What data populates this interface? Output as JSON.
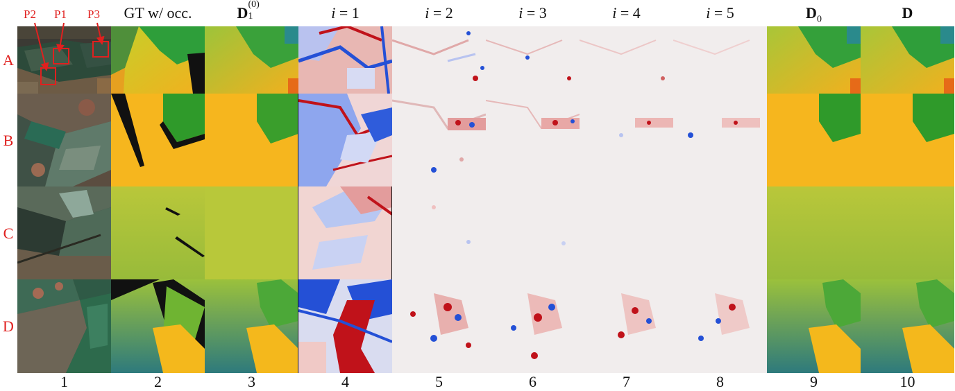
{
  "headers": {
    "c1": "",
    "c2": "GT w/ occ.",
    "c3_main": "D",
    "c3_sub": "1",
    "c3_sup": "(0)",
    "c4_var": "i",
    "c4_rest": " = 1",
    "c5_var": "i",
    "c5_rest": " = 2",
    "c6_var": "i",
    "c6_rest": " = 3",
    "c7_var": "i",
    "c7_rest": " = 4",
    "c8_var": "i",
    "c8_rest": " = 5",
    "c9_main": "D",
    "c9_sub": "0",
    "c10_main": "D"
  },
  "column_numbers": [
    "1",
    "2",
    "3",
    "4",
    "5",
    "6",
    "7",
    "8",
    "9",
    "10"
  ],
  "row_labels": [
    "A",
    "B",
    "C",
    "D"
  ],
  "patch_labels": [
    "P2",
    "P1",
    "P3"
  ],
  "colors": {
    "label_red": "#e0201f",
    "depth_yellow": "#f6b61e",
    "depth_green": "#2f9a2a",
    "depth_teal": "#2a8a8c",
    "err_red": "#c0121a",
    "err_blue": "#2450d6",
    "err_white": "#f1eded"
  }
}
